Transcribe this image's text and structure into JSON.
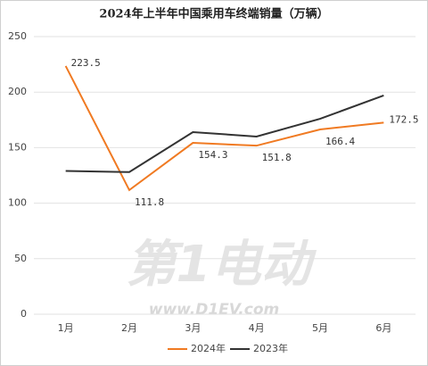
{
  "chart_data": {
    "type": "line",
    "title": "2024年上半年中国乘用车终端销量（万辆）",
    "watermark": "第1电动",
    "watermark_url": "www.D1EV.com",
    "categories": [
      "1月",
      "2月",
      "3月",
      "4月",
      "5月",
      "6月"
    ],
    "series": [
      {
        "name": "2024年",
        "color": "#f07a22",
        "values": [
          223.5,
          111.8,
          154.3,
          151.8,
          166.4,
          172.5
        ],
        "labels": true
      },
      {
        "name": "2023年",
        "color": "#333333",
        "values": [
          129,
          128,
          164,
          160,
          176,
          197
        ]
      }
    ],
    "ylim": [
      0,
      250
    ],
    "yticks": [
      0,
      50,
      100,
      150,
      200,
      250
    ],
    "grid": true,
    "legend": "bottom"
  }
}
